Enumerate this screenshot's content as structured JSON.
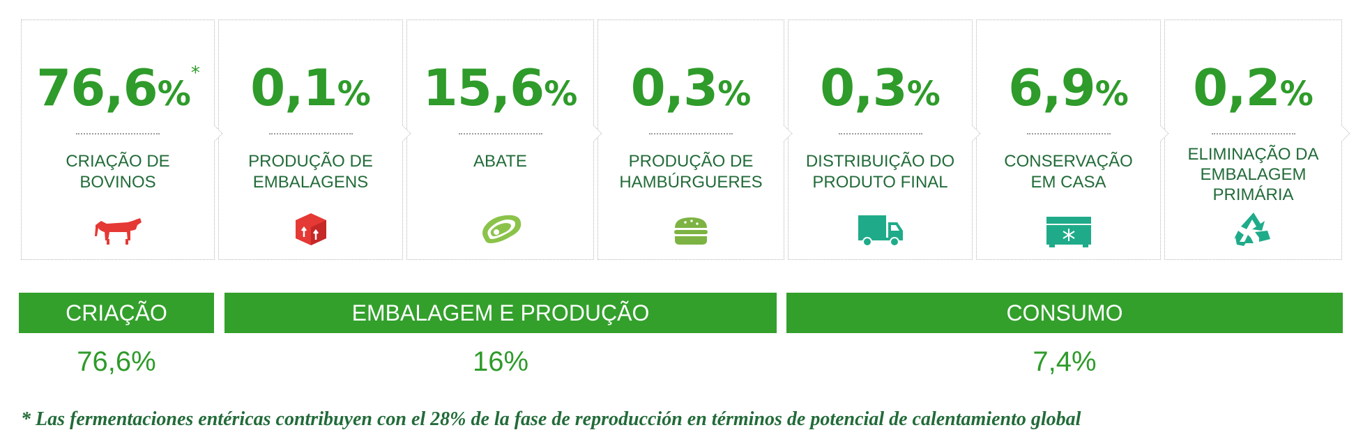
{
  "stages": [
    {
      "percent": "76,6",
      "unit": "%",
      "star": "*",
      "label": "CRIAÇÃO DE BOVINOS",
      "icon": "cow-icon",
      "icon_color": "#e53935"
    },
    {
      "percent": "0,1",
      "unit": "%",
      "label": "PRODUÇÃO DE EMBALAGENS",
      "icon": "package-icon",
      "icon_color": "#e53935"
    },
    {
      "percent": "15,6",
      "unit": "%",
      "label": "ABATE",
      "icon": "steak-icon",
      "icon_color": "#8bc34a"
    },
    {
      "percent": "0,3",
      "unit": "%",
      "label": "PRODUÇÃO DE HAMBÚRGUERES",
      "icon": "burger-icon",
      "icon_color": "#7cb342"
    },
    {
      "percent": "0,3",
      "unit": "%",
      "label": "DISTRIBUIÇÃO DO PRODUTO FINAL",
      "icon": "truck-icon",
      "icon_color": "#1fab89"
    },
    {
      "percent": "6,9",
      "unit": "%",
      "label": "CONSERVAÇÃO EM CASA",
      "icon": "freezer-icon",
      "icon_color": "#1fab89"
    },
    {
      "percent": "0,2",
      "unit": "%",
      "label": "ELIMINAÇÃO DA EMBALAGEM PRIMÁRIA",
      "icon": "recycle-icon",
      "icon_color": "#1fab89"
    }
  ],
  "phases": [
    {
      "label": "CRIAÇÃO",
      "value": "76,6%"
    },
    {
      "label": "EMBALAGEM E PRODUÇÃO",
      "value": "16%"
    },
    {
      "label": "CONSUMO",
      "value": "7,4%"
    }
  ],
  "footnote": "* Las fermentaciones entéricas contribuyen con el 28% de la fase de reproducción en términos de potencial de calentamiento global",
  "colors": {
    "green": "#2e9b2a",
    "dark_green": "#226b39",
    "bar_green": "#33a02c"
  }
}
